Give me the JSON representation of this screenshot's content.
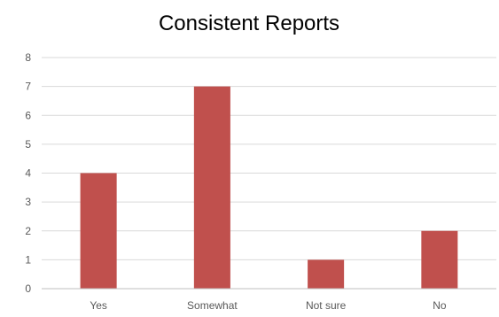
{
  "chart_data": {
    "type": "bar",
    "title": "Consistent Reports",
    "categories": [
      "Yes",
      "Somewhat",
      "Not sure",
      "No"
    ],
    "values": [
      4,
      7,
      1,
      2
    ],
    "xlabel": "",
    "ylabel": "",
    "ylim": [
      0,
      8
    ],
    "yticks": [
      "0",
      "1",
      "2",
      "3",
      "4",
      "5",
      "6",
      "7",
      "8"
    ],
    "grid": true,
    "legend": "none",
    "bar_color": "#c0504d"
  }
}
